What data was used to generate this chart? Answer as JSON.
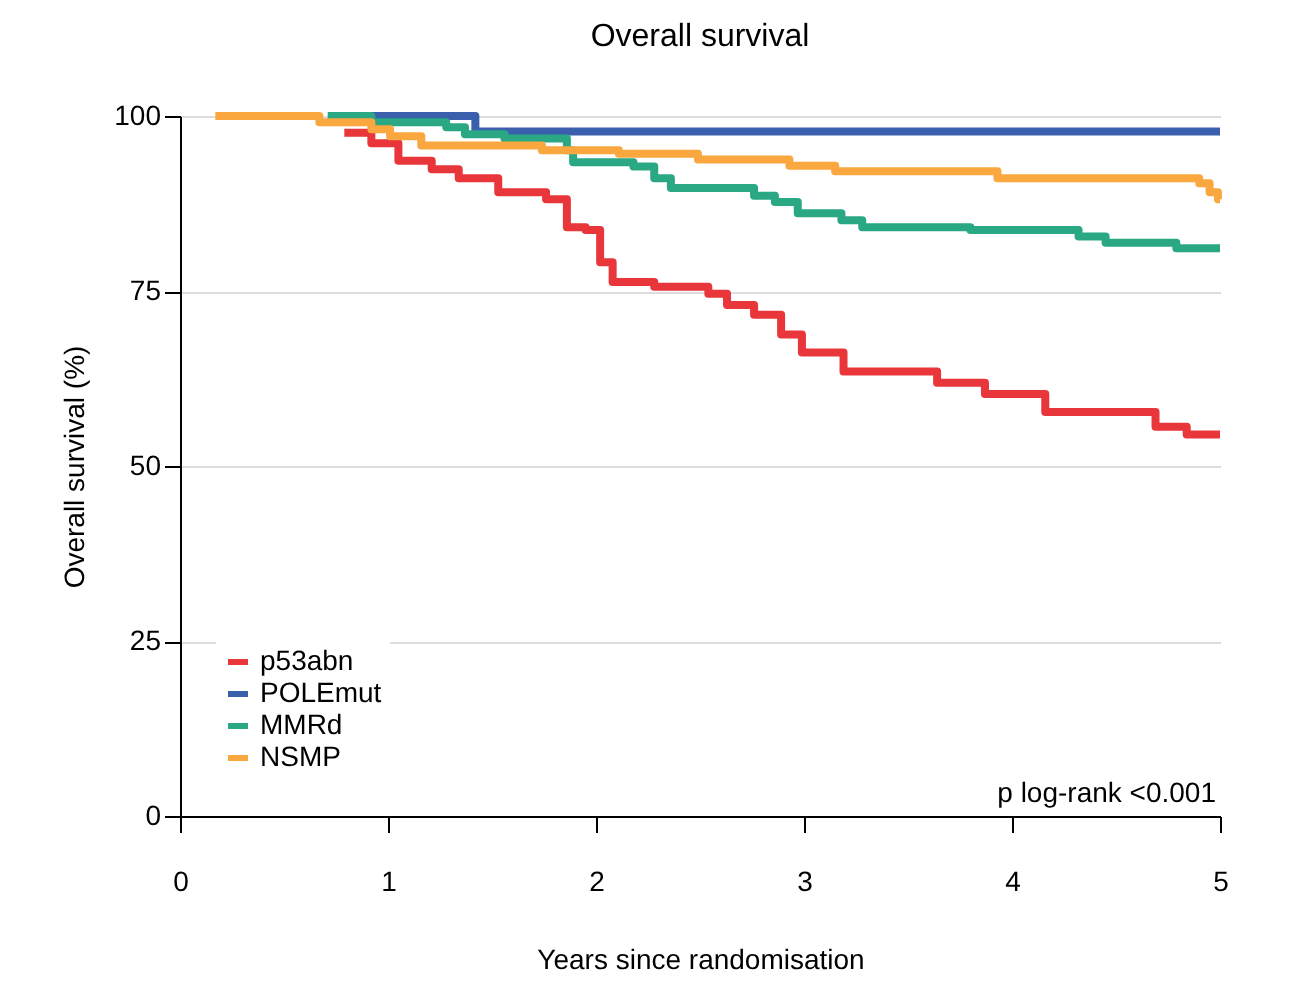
{
  "chart_data": {
    "type": "step",
    "title": "Overall survival",
    "xlabel": "Years since randomisation",
    "ylabel": "Overall survival (%)",
    "xlim": [
      0,
      5
    ],
    "xticks": [
      0,
      1,
      2,
      3,
      4,
      5
    ],
    "ylim": [
      0,
      100
    ],
    "yticks": [
      0,
      25,
      50,
      75,
      100
    ],
    "grid": "y",
    "legend": "bottom left",
    "annotations": [
      "p log-rank <0.001"
    ],
    "series": [
      {
        "name": "p53abn",
        "color": "#e8363a",
        "x": [
          0.79,
          0.92,
          1.05,
          1.21,
          1.34,
          1.53,
          1.76,
          1.86,
          1.95,
          2.02,
          2.08,
          2.28,
          2.54,
          2.63,
          2.76,
          2.89,
          2.99,
          3.19,
          3.64,
          3.87,
          4.16,
          4.69,
          4.84,
          5.0
        ],
        "values": [
          97.6,
          96.1,
          93.6,
          92.4,
          91.1,
          89.1,
          88.1,
          84.1,
          83.7,
          79.1,
          76.3,
          75.6,
          74.6,
          73,
          71.6,
          68.8,
          66.2,
          63.5,
          61.9,
          60.3,
          57.7,
          55.6,
          54.5,
          54.5
        ]
      },
      {
        "name": "POLEmut",
        "color": "#3a5fad",
        "x": [
          0.92,
          1.42,
          5.0
        ],
        "values": [
          100,
          97.8,
          97.8
        ]
      },
      {
        "name": "MMRd",
        "color": "#2aa884",
        "x": [
          0.71,
          0.92,
          1.28,
          1.37,
          1.56,
          1.86,
          1.89,
          2.18,
          2.28,
          2.36,
          2.76,
          2.86,
          2.97,
          3.18,
          3.28,
          3.8,
          4.32,
          4.45,
          4.79,
          5.0
        ],
        "values": [
          100,
          99.1,
          98.4,
          97.4,
          96.8,
          95.1,
          93.4,
          92.8,
          91.1,
          89.7,
          88.6,
          87.7,
          86.1,
          85.1,
          84.1,
          83.7,
          82.8,
          81.9,
          81.1,
          81.1
        ]
      },
      {
        "name": "NSMP",
        "color": "#f9a73e",
        "x": [
          0.17,
          0.67,
          0.92,
          1.01,
          1.16,
          1.74,
          2.11,
          2.49,
          2.93,
          3.15,
          3.93,
          4.9,
          4.95,
          4.99,
          5.0
        ],
        "values": [
          100,
          99.1,
          98.1,
          97.1,
          95.8,
          95.1,
          94.6,
          93.8,
          92.9,
          92.1,
          91.1,
          90.4,
          89.1,
          88.1,
          88.1
        ]
      }
    ]
  }
}
